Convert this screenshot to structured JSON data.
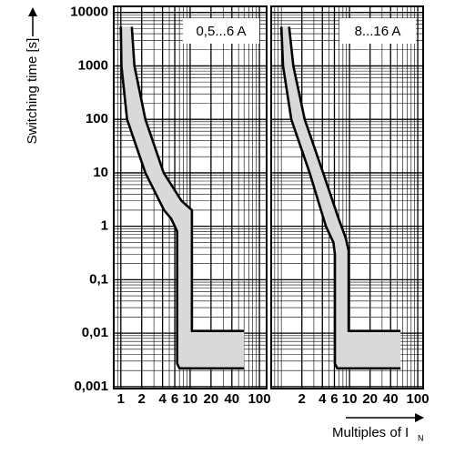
{
  "chart_data": [
    {
      "type": "line",
      "label": "0,5...6 A",
      "ylabel": "Switching time [s]",
      "xlim": [
        0.79,
        127
      ],
      "xticks": [
        1,
        2,
        4,
        6,
        10,
        20,
        40,
        100
      ],
      "ylim": [
        0.00092,
        13000
      ],
      "yticks": [
        10000,
        1000,
        100,
        10,
        1,
        {
          "value": 0.1,
          "label": "0,1"
        },
        {
          "value": 0.01,
          "label": "0,01"
        },
        {
          "value": 0.001,
          "label": "0,001"
        }
      ],
      "log_x": true,
      "log_y": true,
      "grid": true,
      "band_color": "#d9d9d9",
      "series": [
        {
          "color": "#000000",
          "x": [
            1.0,
            1.02,
            1.23,
            2.26,
            4.2,
            5.3,
            6.5,
            6.5,
            7.0,
            60
          ],
          "values": [
            5400,
            1000,
            100,
            10,
            2,
            1.4,
            0.8,
            0.0027,
            0.0022,
            0.0022
          ]
        },
        {
          "color": "#000000",
          "x": [
            1.44,
            1.57,
            2.26,
            4.15,
            7.5,
            10.6,
            10.6,
            60
          ],
          "values": [
            5400,
            1000,
            100,
            10,
            3,
            2,
            0.011,
            0.011
          ]
        }
      ]
    },
    {
      "type": "line",
      "label": "8...16 A",
      "xlabel": "Multiples of I",
      "xlabel_sub": "N",
      "xlim": [
        0.71,
        120
      ],
      "xticks": [
        2,
        4,
        6,
        10,
        20,
        40,
        100
      ],
      "ylim": [
        0.00092,
        13000
      ],
      "log_x": true,
      "log_y": true,
      "grid": true,
      "band_color": "#d9d9d9",
      "series": [
        {
          "color": "#000000",
          "x": [
            1.0,
            1.06,
            1.4,
            2.6,
            4.5,
            5.8,
            6.1,
            6.1,
            6.6,
            56
          ],
          "values": [
            5400,
            1000,
            100,
            10,
            1,
            0.5,
            0.3,
            0.0027,
            0.0022,
            0.0022
          ]
        },
        {
          "color": "#000000",
          "x": [
            1.3,
            1.5,
            2.2,
            4.1,
            6.9,
            8.8,
            9.7,
            9.7,
            56
          ],
          "values": [
            5400,
            1000,
            100,
            10,
            1.4,
            0.6,
            0.35,
            0.011,
            0.011
          ]
        }
      ]
    }
  ]
}
